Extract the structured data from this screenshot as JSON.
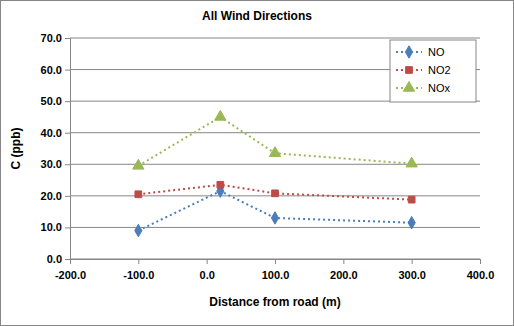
{
  "chart_data": {
    "type": "line",
    "title": "All Wind Directions",
    "x_label": "Distance from road (m)",
    "y_label": "C (ppb)",
    "x": [
      -100,
      20,
      100,
      300
    ],
    "series": [
      {
        "name": "NO",
        "color": "#4a7ebb",
        "marker": "diamond",
        "line_style": "dotted",
        "values": [
          9.0,
          21.5,
          13.0,
          11.5
        ]
      },
      {
        "name": "NO2",
        "color": "#be4b48",
        "marker": "square",
        "line_style": "dotted",
        "values": [
          20.5,
          23.5,
          20.8,
          18.8
        ]
      },
      {
        "name": "NOx",
        "color": "#98b954",
        "marker": "triangle",
        "line_style": "dotted",
        "values": [
          29.5,
          45.0,
          33.5,
          30.2
        ]
      }
    ],
    "xlim": [
      -200,
      400
    ],
    "xticks": [
      {
        "value": -200,
        "label": "-200.0"
      },
      {
        "value": -100,
        "label": "-100.0"
      },
      {
        "value": 0,
        "label": "0.0"
      },
      {
        "value": 100,
        "label": "100.0"
      },
      {
        "value": 200,
        "label": "200.0"
      },
      {
        "value": 300,
        "label": "300.0"
      },
      {
        "value": 400,
        "label": "400.0"
      }
    ],
    "ylim": [
      0,
      70
    ],
    "yticks": [
      {
        "value": 0,
        "label": "0.0"
      },
      {
        "value": 10,
        "label": "10.0"
      },
      {
        "value": 20,
        "label": "20.0"
      },
      {
        "value": 30,
        "label": "30.0"
      },
      {
        "value": 40,
        "label": "40.0"
      },
      {
        "value": 50,
        "label": "50.0"
      },
      {
        "value": 60,
        "label": "60.0"
      },
      {
        "value": 70,
        "label": "70.0"
      }
    ],
    "grid": true,
    "legend": "top-right"
  }
}
